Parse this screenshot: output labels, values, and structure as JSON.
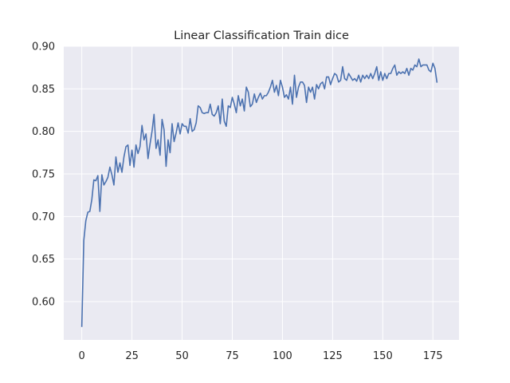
{
  "chart_data": {
    "type": "line",
    "title": "Linear Classification Train dice",
    "xlabel": "",
    "ylabel": "",
    "xlim": [
      -9,
      188
    ],
    "ylim": [
      0.555,
      0.9
    ],
    "xticks": [
      0,
      25,
      50,
      75,
      100,
      125,
      150,
      175
    ],
    "yticks": [
      0.6,
      0.65,
      0.7,
      0.75,
      0.8,
      0.85,
      0.9
    ],
    "grid": true,
    "legend": "none",
    "colors": {
      "plot_bg": "#eaeaf2",
      "grid": "#ffffff",
      "line": "#4c72b0",
      "text": "#262626"
    },
    "series": [
      {
        "values": [
          0.571,
          0.672,
          0.695,
          0.705,
          0.706,
          0.72,
          0.743,
          0.742,
          0.748,
          0.706,
          0.749,
          0.737,
          0.741,
          0.746,
          0.758,
          0.749,
          0.737,
          0.77,
          0.752,
          0.763,
          0.752,
          0.77,
          0.782,
          0.784,
          0.76,
          0.778,
          0.758,
          0.784,
          0.774,
          0.782,
          0.807,
          0.79,
          0.797,
          0.768,
          0.785,
          0.8,
          0.82,
          0.78,
          0.79,
          0.772,
          0.814,
          0.802,
          0.759,
          0.79,
          0.775,
          0.809,
          0.788,
          0.798,
          0.81,
          0.797,
          0.809,
          0.806,
          0.806,
          0.798,
          0.815,
          0.8,
          0.802,
          0.81,
          0.83,
          0.828,
          0.822,
          0.821,
          0.822,
          0.822,
          0.832,
          0.82,
          0.818,
          0.822,
          0.83,
          0.809,
          0.838,
          0.812,
          0.806,
          0.83,
          0.828,
          0.84,
          0.832,
          0.822,
          0.842,
          0.83,
          0.838,
          0.824,
          0.852,
          0.846,
          0.829,
          0.832,
          0.844,
          0.834,
          0.84,
          0.845,
          0.838,
          0.842,
          0.842,
          0.846,
          0.852,
          0.86,
          0.846,
          0.854,
          0.842,
          0.86,
          0.852,
          0.84,
          0.843,
          0.838,
          0.852,
          0.832,
          0.866,
          0.84,
          0.852,
          0.858,
          0.858,
          0.854,
          0.834,
          0.852,
          0.846,
          0.852,
          0.838,
          0.855,
          0.85,
          0.856,
          0.858,
          0.85,
          0.864,
          0.864,
          0.855,
          0.862,
          0.868,
          0.866,
          0.858,
          0.86,
          0.876,
          0.862,
          0.86,
          0.868,
          0.864,
          0.86,
          0.862,
          0.859,
          0.866,
          0.858,
          0.866,
          0.862,
          0.866,
          0.862,
          0.868,
          0.862,
          0.868,
          0.876,
          0.86,
          0.87,
          0.86,
          0.868,
          0.862,
          0.868,
          0.868,
          0.874,
          0.878,
          0.866,
          0.87,
          0.868,
          0.87,
          0.868,
          0.874,
          0.866,
          0.874,
          0.872,
          0.878,
          0.876,
          0.885,
          0.876,
          0.878,
          0.878,
          0.878,
          0.872,
          0.87,
          0.88,
          0.874,
          0.858
        ]
      }
    ]
  }
}
